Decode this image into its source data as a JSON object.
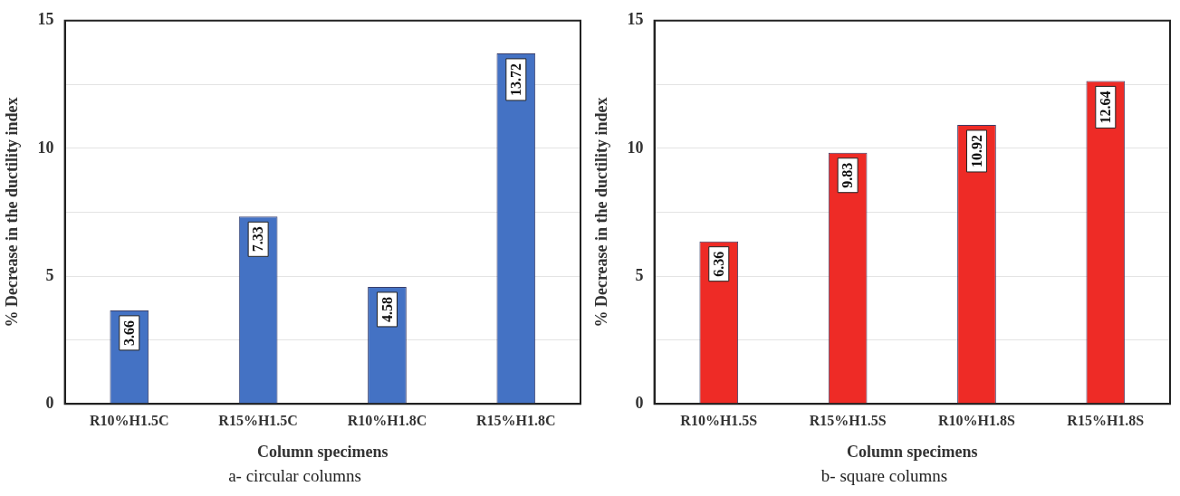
{
  "chart_data": [
    {
      "type": "bar",
      "categories": [
        "R10%H1.5C",
        "R15%H1.5C",
        "R10%H1.8C",
        "R15%H1.8C"
      ],
      "values": [
        3.66,
        7.33,
        4.58,
        13.72
      ],
      "color": "#4472c4",
      "xlabel": "Column specimens",
      "ylabel": "% Decrease in the ductility index",
      "ylim": [
        0,
        15
      ],
      "yticks": [
        0,
        {
          "value": 2.5,
          "label": null
        },
        5,
        {
          "value": 7.5,
          "label": null
        },
        10,
        {
          "value": 12.5,
          "label": null
        },
        15
      ],
      "grid": "y",
      "legend": false,
      "data_labels": true,
      "annotations": [
        "a- circular columns"
      ]
    },
    {
      "type": "bar",
      "categories": [
        "R10%H1.5S",
        "R15%H1.5S",
        "R10%H1.8S",
        "R15%H1.8S"
      ],
      "values": [
        6.36,
        9.83,
        10.92,
        12.64
      ],
      "color": "#ee2b26",
      "xlabel": "Column specimens",
      "ylabel": "% Decrease in the ductility index",
      "ylim": [
        0,
        15
      ],
      "yticks": [
        0,
        {
          "value": 2.5,
          "label": null
        },
        5,
        {
          "value": 7.5,
          "label": null
        },
        10,
        {
          "value": 12.5,
          "label": null
        },
        15
      ],
      "grid": "y",
      "legend": false,
      "data_labels": true,
      "annotations": [
        "b- square columns"
      ]
    }
  ]
}
